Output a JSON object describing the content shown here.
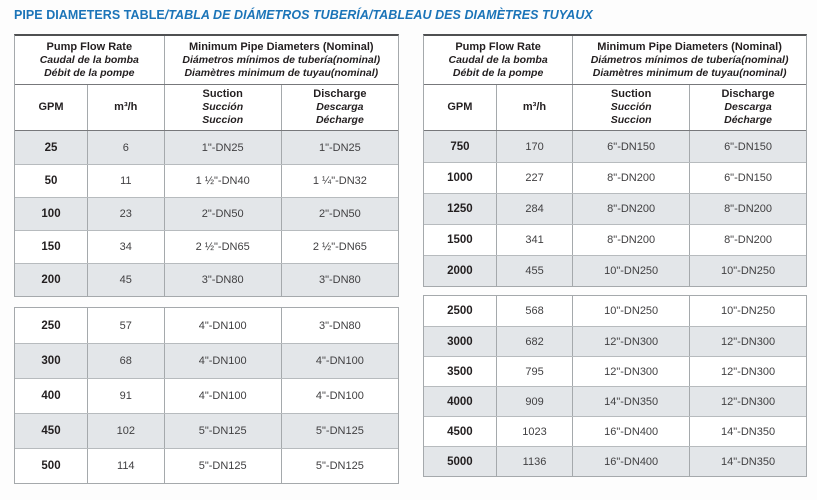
{
  "title": {
    "english": "PIPE DIAMETERS TABLE",
    "translations": "/TABLA DE DIÁMETROS TUBERÍA/TABLEAU DES DIAMÈTRES TUYAUX"
  },
  "colors": {
    "title_blue": "#1b74b8",
    "row_shade": "#e3e6e9"
  },
  "header": {
    "flow_rate": [
      "Pump Flow Rate",
      "Caudal de la bomba",
      "Débit de la pompe"
    ],
    "pipe_diameters": [
      "Minimum Pipe Diameters (Nominal)",
      "Diámetros mínimos de tubería(nominal)",
      "Diamètres minimum de tuyau(nominal)"
    ],
    "gpm_label": "GPM",
    "m3h_label": "m³/h",
    "suction": [
      "Suction",
      "Succión",
      "Succion"
    ],
    "discharge": [
      "Discharge",
      "Descarga",
      "Décharge"
    ]
  },
  "tables": [
    {
      "name": "low-flow",
      "sections": [
        {
          "rows": [
            {
              "gpm": "25",
              "m3h": "6",
              "suction": "1\"-DN25",
              "discharge": "1\"-DN25"
            },
            {
              "gpm": "50",
              "m3h": "11",
              "suction": "1 ½\"-DN40",
              "discharge": "1 ¼\"-DN32"
            },
            {
              "gpm": "100",
              "m3h": "23",
              "suction": "2\"-DN50",
              "discharge": "2\"-DN50"
            },
            {
              "gpm": "150",
              "m3h": "34",
              "suction": "2 ½\"-DN65",
              "discharge": "2 ½\"-DN65"
            },
            {
              "gpm": "200",
              "m3h": "45",
              "suction": "3\"-DN80",
              "discharge": "3\"-DN80"
            }
          ]
        },
        {
          "rows": [
            {
              "gpm": "250",
              "m3h": "57",
              "suction": "4\"-DN100",
              "discharge": "3\"-DN80"
            },
            {
              "gpm": "300",
              "m3h": "68",
              "suction": "4\"-DN100",
              "discharge": "4\"-DN100"
            },
            {
              "gpm": "400",
              "m3h": "91",
              "suction": "4\"-DN100",
              "discharge": "4\"-DN100"
            },
            {
              "gpm": "450",
              "m3h": "102",
              "suction": "5\"-DN125",
              "discharge": "5\"-DN125"
            },
            {
              "gpm": "500",
              "m3h": "114",
              "suction": "5\"-DN125",
              "discharge": "5\"-DN125"
            }
          ]
        }
      ]
    },
    {
      "name": "high-flow",
      "sections": [
        {
          "rows": [
            {
              "gpm": "750",
              "m3h": "170",
              "suction": "6\"-DN150",
              "discharge": "6\"-DN150"
            },
            {
              "gpm": "1000",
              "m3h": "227",
              "suction": "8\"-DN200",
              "discharge": "6\"-DN150"
            },
            {
              "gpm": "1250",
              "m3h": "284",
              "suction": "8\"-DN200",
              "discharge": "8\"-DN200"
            },
            {
              "gpm": "1500",
              "m3h": "341",
              "suction": "8\"-DN200",
              "discharge": "8\"-DN200"
            },
            {
              "gpm": "2000",
              "m3h": "455",
              "suction": "10\"-DN250",
              "discharge": "10\"-DN250"
            }
          ]
        },
        {
          "rows": [
            {
              "gpm": "2500",
              "m3h": "568",
              "suction": "10\"-DN250",
              "discharge": "10\"-DN250"
            },
            {
              "gpm": "3000",
              "m3h": "682",
              "suction": "12\"-DN300",
              "discharge": "12\"-DN300"
            },
            {
              "gpm": "3500",
              "m3h": "795",
              "suction": "12\"-DN300",
              "discharge": "12\"-DN300"
            },
            {
              "gpm": "4000",
              "m3h": "909",
              "suction": "14\"-DN350",
              "discharge": "12\"-DN300"
            },
            {
              "gpm": "4500",
              "m3h": "1023",
              "suction": "16\"-DN400",
              "discharge": "14\"-DN350"
            },
            {
              "gpm": "5000",
              "m3h": "1136",
              "suction": "16\"-DN400",
              "discharge": "14\"-DN350"
            }
          ]
        }
      ]
    }
  ]
}
